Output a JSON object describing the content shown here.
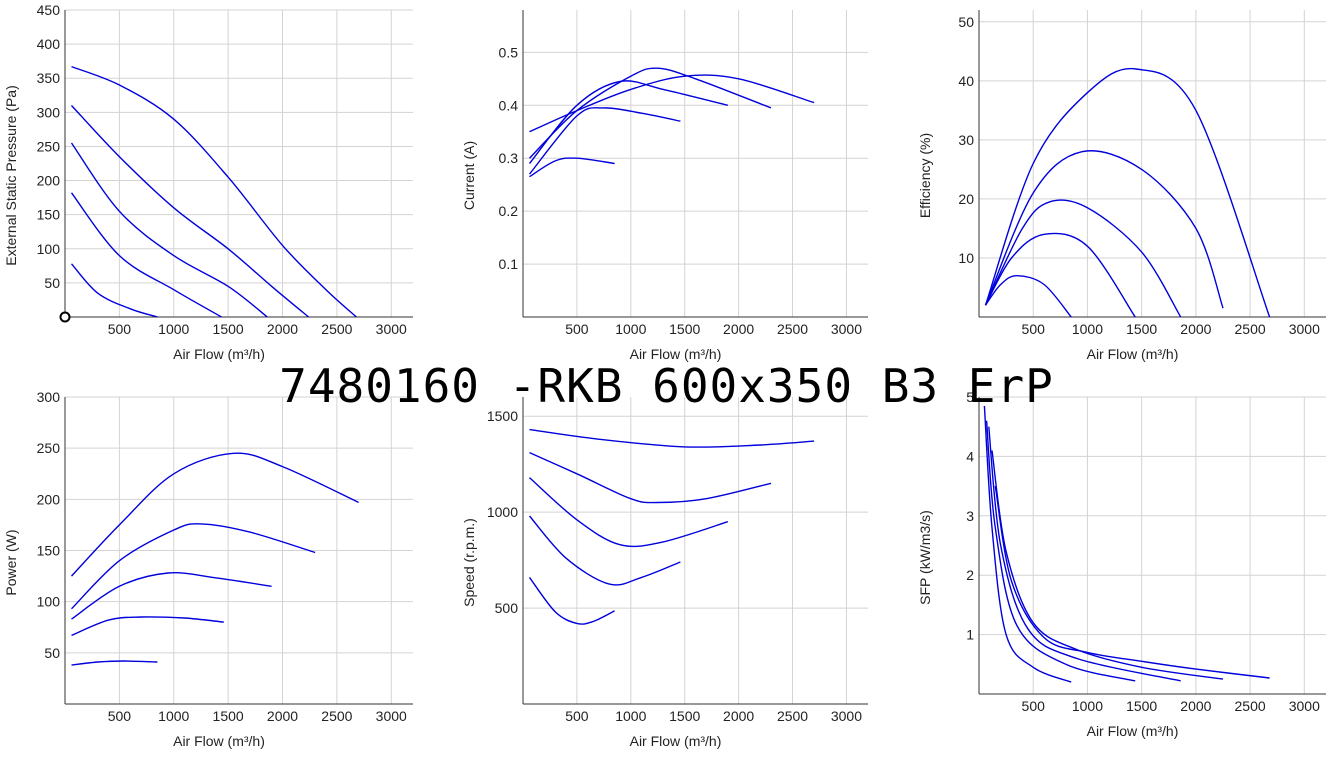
{
  "title": "7480160 -RKB 600x350 B3 ErP",
  "colors": {
    "curve": "#0000dd",
    "grid": "#d3d3d3"
  },
  "chart_data": [
    {
      "type": "line",
      "xlabel": "Air Flow (m³/h)",
      "ylabel": "External Static Pressure (Pa)",
      "xlim": [
        0,
        3200
      ],
      "ylim": [
        0,
        450
      ],
      "xticks": [
        500,
        1000,
        1500,
        2000,
        2500,
        3000
      ],
      "yticks": [
        50,
        100,
        150,
        200,
        250,
        300,
        350,
        400,
        450
      ],
      "series": [
        {
          "points": [
            [
              60,
              367
            ],
            [
              500,
              340
            ],
            [
              1000,
              290
            ],
            [
              1500,
              205
            ],
            [
              2000,
              105
            ],
            [
              2400,
              40
            ],
            [
              2680,
              0
            ]
          ]
        },
        {
          "points": [
            [
              60,
              310
            ],
            [
              500,
              235
            ],
            [
              1000,
              160
            ],
            [
              1500,
              100
            ],
            [
              1900,
              45
            ],
            [
              2240,
              0
            ]
          ]
        },
        {
          "points": [
            [
              60,
              255
            ],
            [
              500,
              155
            ],
            [
              1000,
              90
            ],
            [
              1500,
              45
            ],
            [
              1860,
              0
            ]
          ]
        },
        {
          "points": [
            [
              60,
              182
            ],
            [
              500,
              90
            ],
            [
              1000,
              40
            ],
            [
              1440,
              0
            ]
          ]
        },
        {
          "points": [
            [
              60,
              78
            ],
            [
              300,
              35
            ],
            [
              600,
              12
            ],
            [
              850,
              0
            ]
          ]
        }
      ],
      "markers": [
        [
          0,
          0
        ]
      ]
    },
    {
      "type": "line",
      "xlabel": "Air Flow (m³/h)",
      "ylabel": "Current (A)",
      "xlim": [
        0,
        3200
      ],
      "ylim": [
        0,
        0.58
      ],
      "xticks": [
        500,
        1000,
        1500,
        2000,
        2500,
        3000
      ],
      "yticks": [
        0.1,
        0.2,
        0.3,
        0.4,
        0.5
      ],
      "series": [
        {
          "points": [
            [
              60,
              0.35
            ],
            [
              500,
              0.39
            ],
            [
              1000,
              0.43
            ],
            [
              1500,
              0.455
            ],
            [
              2000,
              0.45
            ],
            [
              2700,
              0.405
            ]
          ]
        },
        {
          "points": [
            [
              60,
              0.3
            ],
            [
              500,
              0.39
            ],
            [
              1000,
              0.455
            ],
            [
              1250,
              0.47
            ],
            [
              1600,
              0.45
            ],
            [
              2300,
              0.395
            ]
          ]
        },
        {
          "points": [
            [
              60,
              0.29
            ],
            [
              500,
              0.4
            ],
            [
              900,
              0.445
            ],
            [
              1300,
              0.43
            ],
            [
              1900,
              0.4
            ]
          ]
        },
        {
          "points": [
            [
              60,
              0.27
            ],
            [
              500,
              0.38
            ],
            [
              750,
              0.395
            ],
            [
              1100,
              0.385
            ],
            [
              1460,
              0.37
            ]
          ]
        },
        {
          "points": [
            [
              60,
              0.265
            ],
            [
              300,
              0.295
            ],
            [
              500,
              0.3
            ],
            [
              850,
              0.29
            ]
          ]
        }
      ]
    },
    {
      "type": "line",
      "xlabel": "Air Flow (m³/h)",
      "ylabel": "Efficiency (%)",
      "xlim": [
        0,
        3200
      ],
      "ylim": [
        0,
        52
      ],
      "xticks": [
        500,
        1000,
        1500,
        2000,
        2500,
        3000
      ],
      "yticks": [
        10,
        20,
        30,
        40,
        50
      ],
      "series": [
        {
          "points": [
            [
              60,
              2
            ],
            [
              500,
              26
            ],
            [
              1000,
              38
            ],
            [
              1450,
              42
            ],
            [
              2000,
              35
            ],
            [
              2680,
              0
            ]
          ]
        },
        {
          "points": [
            [
              60,
              2
            ],
            [
              500,
              21
            ],
            [
              950,
              28
            ],
            [
              1500,
              25
            ],
            [
              2000,
              15
            ],
            [
              2250,
              1.5
            ]
          ]
        },
        {
          "points": [
            [
              60,
              2
            ],
            [
              400,
              15
            ],
            [
              650,
              19.5
            ],
            [
              1000,
              18.5
            ],
            [
              1500,
              11
            ],
            [
              1860,
              0
            ]
          ]
        },
        {
          "points": [
            [
              60,
              2
            ],
            [
              300,
              10
            ],
            [
              600,
              14
            ],
            [
              1000,
              12
            ],
            [
              1440,
              0
            ]
          ]
        },
        {
          "points": [
            [
              60,
              2
            ],
            [
              200,
              5.5
            ],
            [
              350,
              7
            ],
            [
              600,
              5.5
            ],
            [
              850,
              0
            ]
          ]
        }
      ]
    },
    {
      "type": "line",
      "xlabel": "Air Flow (m³/h)",
      "ylabel": "Power (W)",
      "xlim": [
        0,
        3200
      ],
      "ylim": [
        0,
        300
      ],
      "xticks": [
        500,
        1000,
        1500,
        2000,
        2500,
        3000
      ],
      "yticks": [
        50,
        100,
        150,
        200,
        250,
        300
      ],
      "series": [
        {
          "points": [
            [
              60,
              125
            ],
            [
              500,
              175
            ],
            [
              1000,
              225
            ],
            [
              1550,
              245
            ],
            [
              2000,
              232
            ],
            [
              2700,
              197
            ]
          ]
        },
        {
          "points": [
            [
              60,
              93
            ],
            [
              500,
              140
            ],
            [
              1000,
              170
            ],
            [
              1250,
              176
            ],
            [
              1700,
              168
            ],
            [
              2300,
              148
            ]
          ]
        },
        {
          "points": [
            [
              60,
              83
            ],
            [
              500,
              115
            ],
            [
              950,
              128
            ],
            [
              1400,
              123
            ],
            [
              1900,
              115
            ]
          ]
        },
        {
          "points": [
            [
              60,
              67
            ],
            [
              400,
              82
            ],
            [
              700,
              85
            ],
            [
              1100,
              84
            ],
            [
              1460,
              80
            ]
          ]
        },
        {
          "points": [
            [
              60,
              38
            ],
            [
              300,
              41
            ],
            [
              550,
              42
            ],
            [
              850,
              41
            ]
          ]
        }
      ]
    },
    {
      "type": "line",
      "xlabel": "Air Flow (m³/h)",
      "ylabel": "Speed (r.p.m.)",
      "xlim": [
        0,
        3200
      ],
      "ylim": [
        0,
        1600
      ],
      "xticks": [
        500,
        1000,
        1500,
        2000,
        2500,
        3000
      ],
      "yticks": [
        500,
        1000,
        1500
      ],
      "series": [
        {
          "points": [
            [
              60,
              1430
            ],
            [
              700,
              1380
            ],
            [
              1500,
              1340
            ],
            [
              2200,
              1350
            ],
            [
              2700,
              1370
            ]
          ]
        },
        {
          "points": [
            [
              60,
              1310
            ],
            [
              500,
              1200
            ],
            [
              1000,
              1070
            ],
            [
              1250,
              1050
            ],
            [
              1700,
              1070
            ],
            [
              2300,
              1150
            ]
          ]
        },
        {
          "points": [
            [
              60,
              1180
            ],
            [
              500,
              960
            ],
            [
              900,
              830
            ],
            [
              1300,
              845
            ],
            [
              1900,
              950
            ]
          ]
        },
        {
          "points": [
            [
              60,
              980
            ],
            [
              400,
              760
            ],
            [
              800,
              625
            ],
            [
              1100,
              660
            ],
            [
              1460,
              740
            ]
          ]
        },
        {
          "points": [
            [
              60,
              660
            ],
            [
              300,
              480
            ],
            [
              500,
              420
            ],
            [
              650,
              430
            ],
            [
              850,
              485
            ]
          ]
        }
      ]
    },
    {
      "type": "line",
      "xlabel": "Air Flow (m³/h)",
      "ylabel": "SFP (kW/m3/s)",
      "xlim": [
        0,
        3200
      ],
      "ylim": [
        0,
        5
      ],
      "xticks": [
        500,
        1000,
        1500,
        2000,
        2500,
        3000
      ],
      "yticks": [
        1,
        2,
        3,
        4,
        5
      ],
      "series": [
        {
          "points": [
            [
              150,
              3.5
            ],
            [
              300,
              1.9
            ],
            [
              600,
              0.95
            ],
            [
              1000,
              0.7
            ],
            [
              1500,
              0.55
            ],
            [
              2000,
              0.42
            ],
            [
              2680,
              0.27
            ]
          ]
        },
        {
          "points": [
            [
              120,
              4.1
            ],
            [
              250,
              2.4
            ],
            [
              500,
              1.2
            ],
            [
              900,
              0.75
            ],
            [
              1500,
              0.45
            ],
            [
              2250,
              0.25
            ]
          ]
        },
        {
          "points": [
            [
              90,
              4.5
            ],
            [
              200,
              2.5
            ],
            [
              450,
              1.1
            ],
            [
              900,
              0.6
            ],
            [
              1860,
              0.22
            ]
          ]
        },
        {
          "points": [
            [
              70,
              4.6
            ],
            [
              150,
              2.8
            ],
            [
              350,
              1.15
            ],
            [
              800,
              0.5
            ],
            [
              1440,
              0.22
            ]
          ]
        },
        {
          "points": [
            [
              50,
              4.85
            ],
            [
              120,
              2.8
            ],
            [
              250,
              1.0
            ],
            [
              500,
              0.45
            ],
            [
              850,
              0.2
            ]
          ]
        }
      ]
    }
  ]
}
